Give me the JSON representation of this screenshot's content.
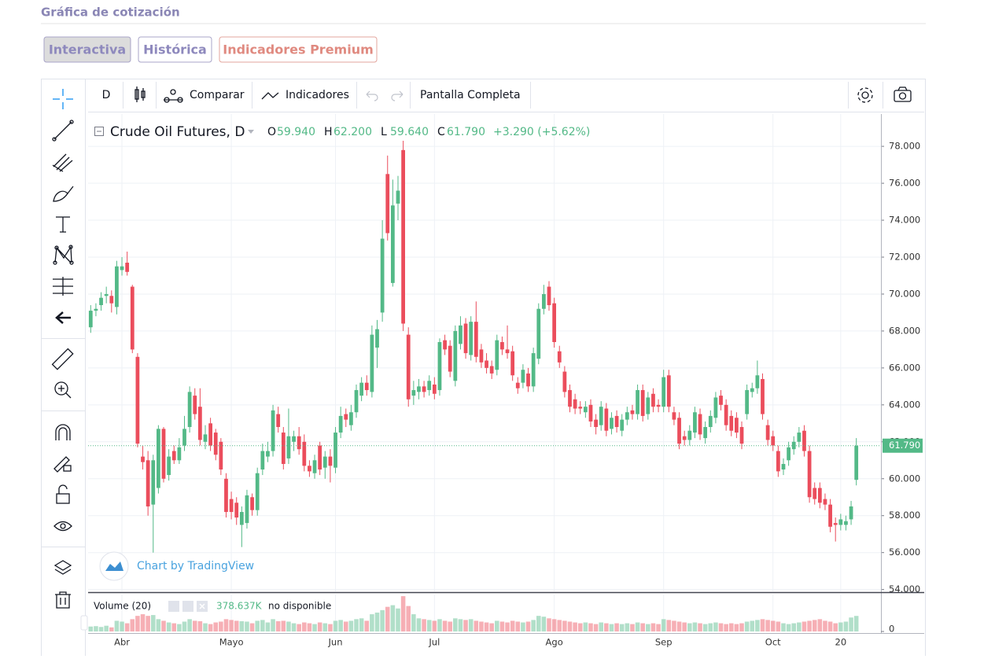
{
  "header": {
    "title": "Gráfica de cotización"
  },
  "tabs": [
    "Interactiva",
    "Histórica",
    "Indicadores Premium"
  ],
  "toolbar": {
    "interval": "D",
    "compare": "Comparar",
    "indicators": "Indicadores",
    "fullscreen": "Pantalla Completa"
  },
  "chart_data": {
    "type": "candlestick",
    "title": "Crude Oil Futures, D",
    "ohlc_legend": [
      {
        "key": "O",
        "value": "59.940"
      },
      {
        "key": "H",
        "value": "62.200"
      },
      {
        "key": "L",
        "value": "59.640"
      },
      {
        "key": "C",
        "value": "61.790"
      }
    ],
    "change": "+3.290 (+5.62%)",
    "watermark": "Chart by TradingView",
    "volume_label": "Volume (20)",
    "volume_value": "378.637K",
    "volume_status": "no disponible",
    "up_color": "#53b987",
    "down_color": "#eb4d5c",
    "grid": true,
    "ylim": [
      53.9,
      79.75
    ],
    "yticks": [
      {
        "value": 78,
        "label": "78.000"
      },
      {
        "value": 76,
        "label": "76.000"
      },
      {
        "value": 74,
        "label": "74.000"
      },
      {
        "value": 72,
        "label": "72.000"
      },
      {
        "value": 70,
        "label": "70.000"
      },
      {
        "value": 68,
        "label": "68.000"
      },
      {
        "value": 66,
        "label": "66.000"
      },
      {
        "value": 64,
        "label": "64.000"
      },
      {
        "value": 62,
        "label": "62.000"
      },
      {
        "value": 60,
        "label": "60.000"
      },
      {
        "value": 58,
        "label": "58.000"
      },
      {
        "value": 56,
        "label": "56.000"
      },
      {
        "value": 54,
        "label": "54.000"
      }
    ],
    "last_price": {
      "value": 61.79,
      "label": "61.790"
    },
    "volume_ylim": [
      0,
      900
    ],
    "volume_ticks": [
      0
    ],
    "categories": [
      null,
      null,
      null,
      null,
      null,
      null,
      "Abr",
      null,
      null,
      null,
      null,
      null,
      null,
      null,
      null,
      null,
      null,
      null,
      null,
      null,
      null,
      null,
      null,
      null,
      null,
      null,
      null,
      "Mayo",
      null,
      null,
      null,
      null,
      null,
      null,
      null,
      null,
      null,
      null,
      null,
      null,
      null,
      null,
      null,
      null,
      null,
      null,
      null,
      "Jun",
      null,
      null,
      null,
      null,
      null,
      null,
      null,
      null,
      null,
      null,
      null,
      null,
      null,
      null,
      null,
      null,
      null,
      null,
      "Jul",
      null,
      null,
      null,
      null,
      null,
      null,
      null,
      null,
      null,
      null,
      null,
      null,
      null,
      null,
      null,
      null,
      null,
      null,
      null,
      null,
      null,
      null,
      "Ago",
      null,
      null,
      null,
      null,
      null,
      null,
      null,
      null,
      null,
      null,
      null,
      null,
      null,
      null,
      null,
      null,
      null,
      null,
      null,
      null,
      "Sep",
      null,
      null,
      null,
      null,
      null,
      null,
      null,
      null,
      null,
      null,
      null,
      null,
      null,
      null,
      null,
      null,
      null,
      null,
      null,
      null,
      "Oct",
      null,
      null,
      null,
      null,
      null,
      null,
      null,
      null,
      null,
      null,
      null,
      null,
      "20",
      null,
      null,
      null
    ],
    "candles": [
      [
        68.2,
        69.4,
        67.9,
        69.1
      ],
      [
        69.1,
        69.5,
        68.8,
        69.2
      ],
      [
        69.4,
        70.1,
        69.1,
        69.8
      ],
      [
        69.9,
        70.4,
        69.5,
        70.0
      ],
      [
        69.9,
        70.2,
        69.0,
        69.5
      ],
      [
        69.3,
        71.8,
        68.9,
        71.5
      ],
      [
        71.3,
        72.0,
        71.0,
        71.5
      ],
      [
        71.7,
        72.3,
        71.0,
        71.2
      ],
      [
        70.4,
        70.5,
        66.8,
        67.0
      ],
      [
        66.6,
        66.8,
        61.7,
        61.9
      ],
      [
        61.2,
        61.8,
        60.5,
        60.9
      ],
      [
        61.0,
        61.5,
        58.0,
        58.5
      ],
      [
        58.6,
        61.3,
        56.0,
        61.0
      ],
      [
        59.5,
        62.9,
        59.2,
        62.7
      ],
      [
        62.7,
        62.8,
        59.8,
        60.0
      ],
      [
        60.2,
        61.6,
        59.9,
        61.2
      ],
      [
        61.5,
        61.8,
        60.8,
        61.0
      ],
      [
        61.0,
        62.2,
        60.8,
        61.7
      ],
      [
        61.8,
        63.4,
        61.5,
        62.7
      ],
      [
        62.8,
        65.0,
        62.5,
        64.7
      ],
      [
        64.5,
        64.9,
        63.2,
        63.5
      ],
      [
        63.9,
        64.9,
        61.8,
        62.1
      ],
      [
        62.0,
        62.9,
        61.6,
        62.4
      ],
      [
        63.0,
        63.3,
        61.5,
        61.8
      ],
      [
        62.5,
        62.7,
        61.0,
        61.3
      ],
      [
        62.0,
        62.2,
        60.2,
        60.5
      ],
      [
        60.0,
        60.3,
        57.9,
        58.2
      ],
      [
        58.9,
        59.3,
        57.8,
        58.2
      ],
      [
        58.7,
        59.0,
        57.5,
        57.9
      ],
      [
        57.5,
        58.5,
        56.3,
        58.2
      ],
      [
        57.6,
        59.4,
        57.3,
        59.1
      ],
      [
        59.0,
        59.2,
        58.0,
        58.3
      ],
      [
        58.3,
        60.6,
        58.0,
        60.3
      ],
      [
        60.5,
        61.9,
        60.2,
        61.5
      ],
      [
        61.2,
        62.0,
        60.9,
        61.5
      ],
      [
        61.5,
        64.0,
        61.2,
        63.7
      ],
      [
        63.5,
        63.9,
        62.5,
        62.8
      ],
      [
        62.5,
        62.8,
        60.5,
        60.8
      ],
      [
        61.1,
        63.8,
        60.8,
        62.3
      ],
      [
        62.0,
        62.6,
        61.5,
        62.3
      ],
      [
        62.3,
        62.8,
        61.3,
        61.6
      ],
      [
        62.0,
        62.4,
        60.4,
        60.7
      ],
      [
        60.7,
        61.0,
        60.1,
        60.4
      ],
      [
        60.3,
        61.3,
        60.0,
        61.0
      ],
      [
        61.8,
        62.0,
        60.2,
        60.5
      ],
      [
        60.6,
        61.5,
        60.0,
        61.2
      ],
      [
        61.2,
        61.6,
        59.8,
        60.7
      ],
      [
        60.6,
        62.8,
        60.3,
        62.5
      ],
      [
        62.5,
        63.9,
        62.2,
        63.4
      ],
      [
        63.5,
        63.8,
        62.8,
        63.2
      ],
      [
        62.9,
        64.0,
        62.6,
        63.6
      ],
      [
        63.6,
        65.1,
        63.3,
        64.8
      ],
      [
        64.5,
        65.5,
        64.2,
        65.2
      ],
      [
        65.2,
        65.6,
        64.5,
        64.8
      ],
      [
        64.7,
        68.3,
        64.4,
        67.8
      ],
      [
        67.1,
        68.6,
        66.0,
        68.1
      ],
      [
        69.0,
        74.0,
        68.5,
        73.0
      ],
      [
        76.5,
        77.5,
        72.9,
        73.3
      ],
      [
        70.6,
        76.2,
        70.4,
        74.8
      ],
      [
        74.9,
        76.4,
        74.0,
        75.6
      ],
      [
        77.8,
        78.3,
        68.0,
        68.4
      ],
      [
        67.8,
        68.2,
        63.9,
        64.3
      ],
      [
        64.5,
        65.3,
        64.0,
        64.8
      ],
      [
        64.7,
        65.4,
        64.3,
        65.0
      ],
      [
        65.0,
        65.3,
        64.4,
        64.7
      ],
      [
        64.8,
        65.6,
        64.5,
        65.3
      ],
      [
        65.1,
        65.5,
        64.3,
        64.6
      ],
      [
        64.8,
        67.6,
        64.5,
        67.4
      ],
      [
        67.5,
        67.8,
        66.7,
        67.0
      ],
      [
        67.2,
        67.5,
        65.5,
        65.8
      ],
      [
        65.3,
        68.3,
        65.0,
        68.0
      ],
      [
        67.3,
        68.8,
        67.0,
        68.3
      ],
      [
        68.4,
        68.7,
        66.5,
        66.8
      ],
      [
        66.7,
        68.8,
        66.4,
        68.5
      ],
      [
        68.5,
        69.6,
        66.3,
        66.6
      ],
      [
        67.0,
        67.3,
        66.0,
        66.3
      ],
      [
        66.4,
        66.8,
        65.7,
        66.0
      ],
      [
        66.1,
        66.4,
        65.4,
        65.7
      ],
      [
        65.9,
        67.8,
        65.6,
        67.5
      ],
      [
        67.4,
        67.7,
        66.7,
        67.0
      ],
      [
        67.0,
        68.3,
        66.5,
        66.8
      ],
      [
        66.9,
        67.2,
        65.3,
        65.6
      ],
      [
        65.2,
        65.5,
        64.6,
        64.9
      ],
      [
        65.2,
        66.2,
        64.9,
        65.9
      ],
      [
        65.7,
        66.0,
        64.7,
        65.0
      ],
      [
        65.0,
        67.1,
        64.7,
        66.8
      ],
      [
        66.5,
        69.5,
        66.2,
        69.2
      ],
      [
        69.2,
        70.5,
        68.9,
        70.0
      ],
      [
        70.4,
        70.7,
        69.1,
        69.4
      ],
      [
        69.5,
        69.8,
        67.1,
        67.4
      ],
      [
        66.9,
        67.2,
        66.0,
        66.3
      ],
      [
        65.8,
        66.1,
        64.4,
        64.7
      ],
      [
        64.8,
        65.1,
        63.6,
        63.9
      ],
      [
        64.3,
        64.6,
        63.5,
        63.8
      ],
      [
        63.9,
        64.2,
        63.5,
        63.8
      ],
      [
        63.6,
        64.2,
        63.3,
        63.9
      ],
      [
        64.0,
        64.3,
        62.8,
        63.1
      ],
      [
        63.2,
        63.5,
        62.4,
        62.8
      ],
      [
        62.9,
        64.2,
        62.6,
        63.9
      ],
      [
        63.8,
        64.1,
        62.3,
        62.6
      ],
      [
        62.7,
        63.6,
        62.4,
        63.3
      ],
      [
        63.4,
        63.7,
        62.5,
        62.8
      ],
      [
        62.6,
        63.5,
        62.3,
        63.2
      ],
      [
        63.2,
        63.9,
        62.9,
        63.6
      ],
      [
        63.7,
        64.0,
        63.2,
        63.5
      ],
      [
        63.5,
        65.1,
        63.2,
        64.8
      ],
      [
        64.8,
        65.1,
        63.1,
        63.4
      ],
      [
        63.5,
        64.7,
        63.2,
        64.4
      ],
      [
        64.6,
        64.9,
        63.6,
        63.9
      ],
      [
        64.0,
        64.3,
        63.6,
        63.9
      ],
      [
        63.9,
        65.9,
        63.6,
        65.5
      ],
      [
        65.6,
        65.9,
        63.6,
        63.9
      ],
      [
        63.6,
        63.9,
        62.9,
        63.2
      ],
      [
        63.3,
        63.6,
        61.6,
        61.9
      ],
      [
        62.3,
        62.6,
        61.8,
        62.1
      ],
      [
        62.1,
        62.9,
        61.8,
        62.6
      ],
      [
        62.5,
        63.9,
        62.2,
        63.6
      ],
      [
        63.5,
        63.8,
        62.1,
        62.4
      ],
      [
        62.2,
        63.1,
        61.9,
        62.8
      ],
      [
        62.8,
        63.7,
        62.5,
        63.4
      ],
      [
        63.3,
        64.7,
        63.0,
        64.4
      ],
      [
        64.5,
        64.8,
        63.7,
        64.0
      ],
      [
        64.0,
        64.3,
        62.6,
        62.9
      ],
      [
        63.4,
        63.7,
        62.3,
        62.6
      ],
      [
        63.3,
        63.6,
        62.2,
        62.5
      ],
      [
        62.8,
        63.1,
        61.6,
        61.9
      ],
      [
        63.5,
        65.1,
        63.2,
        64.8
      ],
      [
        64.7,
        65.2,
        64.4,
        64.9
      ],
      [
        64.9,
        66.4,
        64.6,
        65.6
      ],
      [
        65.4,
        65.7,
        63.2,
        63.5
      ],
      [
        62.9,
        63.2,
        61.8,
        62.1
      ],
      [
        62.3,
        62.6,
        61.5,
        61.8
      ],
      [
        61.5,
        61.8,
        60.1,
        60.4
      ],
      [
        60.5,
        61.1,
        60.2,
        60.8
      ],
      [
        61.0,
        62.0,
        60.7,
        61.7
      ],
      [
        61.6,
        62.3,
        61.3,
        62.0
      ],
      [
        62.0,
        62.8,
        61.7,
        62.5
      ],
      [
        62.6,
        62.9,
        61.2,
        61.5
      ],
      [
        61.5,
        61.8,
        58.7,
        59.0
      ],
      [
        59.5,
        59.8,
        58.6,
        58.9
      ],
      [
        59.5,
        59.8,
        58.4,
        58.7
      ],
      [
        58.9,
        59.2,
        58.3,
        58.6
      ],
      [
        58.6,
        58.9,
        57.1,
        57.4
      ],
      [
        57.6,
        57.9,
        56.6,
        57.5
      ],
      [
        57.5,
        58.1,
        57.2,
        57.8
      ],
      [
        57.5,
        58.0,
        57.2,
        57.7
      ],
      [
        57.8,
        58.8,
        57.5,
        58.5
      ],
      [
        59.94,
        62.2,
        59.64,
        61.79
      ]
    ],
    "volume": [
      120,
      130,
      110,
      140,
      100,
      260,
      240,
      200,
      300,
      380,
      420,
      380,
      400,
      300,
      260,
      220,
      200,
      180,
      240,
      300,
      260,
      250,
      200,
      180,
      220,
      240,
      300,
      280,
      260,
      250,
      240,
      200,
      260,
      280,
      220,
      300,
      250,
      260,
      240,
      200,
      180,
      220,
      200,
      180,
      220,
      200,
      180,
      260,
      280,
      240,
      260,
      300,
      320,
      260,
      420,
      460,
      520,
      600,
      640,
      560,
      860,
      620,
      420,
      320,
      300,
      280,
      260,
      300,
      260,
      240,
      320,
      300,
      280,
      300,
      260,
      240,
      220,
      200,
      260,
      240,
      220,
      260,
      240,
      220,
      240,
      280,
      380,
      360,
      320,
      300,
      280,
      260,
      240,
      220,
      200,
      220,
      200,
      180,
      220,
      200,
      180,
      200,
      180,
      200,
      180,
      220,
      200,
      180,
      200,
      180,
      300,
      280,
      260,
      240,
      220,
      200,
      220,
      200,
      180,
      200,
      220,
      200,
      180,
      200,
      180,
      200,
      240,
      260,
      280,
      300,
      280,
      260,
      240,
      200,
      180,
      200,
      220,
      240,
      260,
      280,
      300,
      260,
      240,
      200,
      220,
      240,
      340,
      378.637
    ]
  }
}
